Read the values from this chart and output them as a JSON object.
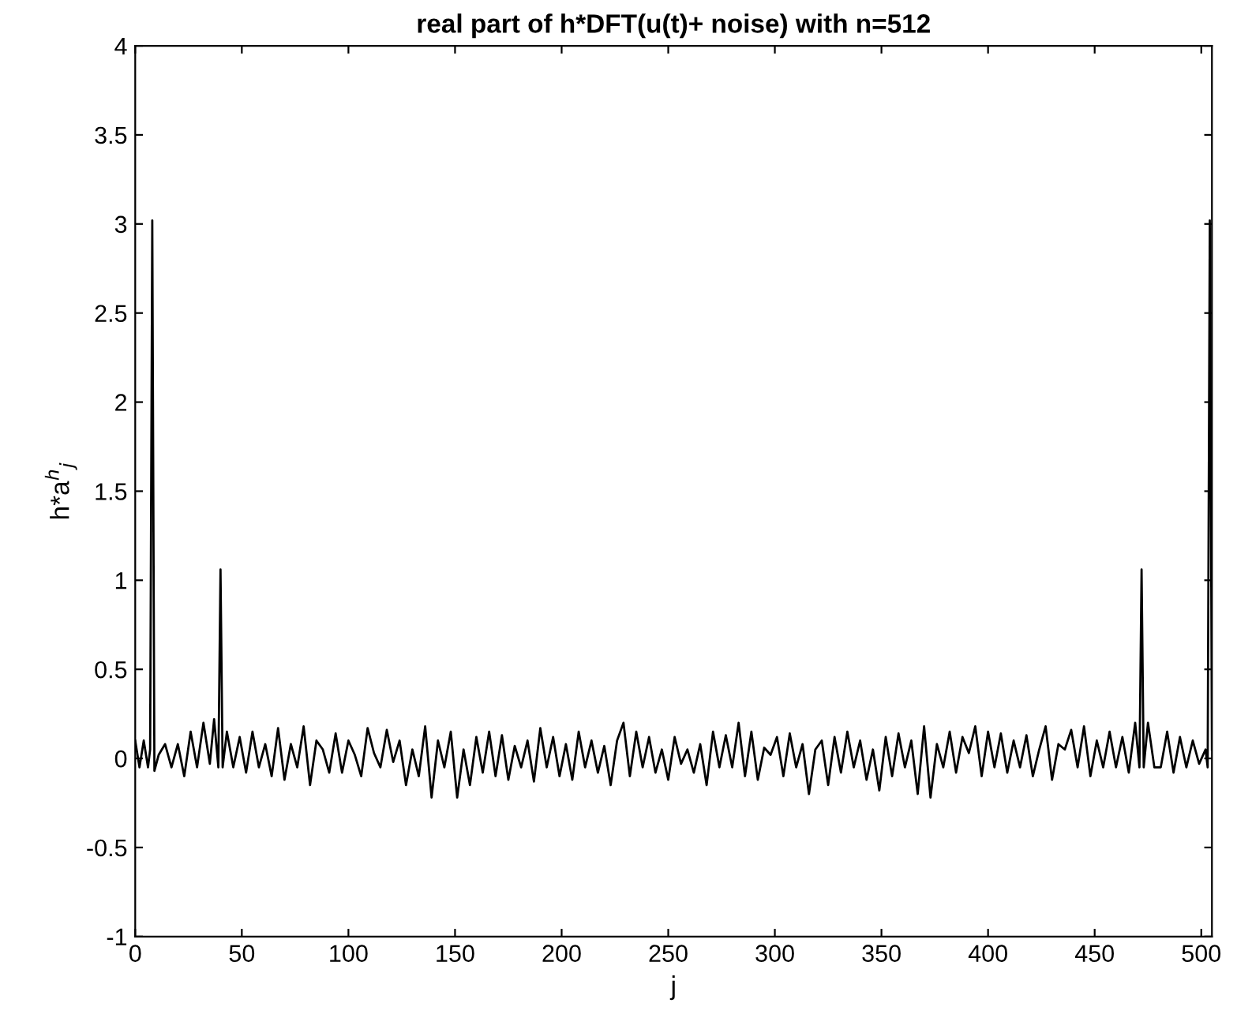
{
  "chart_data": {
    "type": "line",
    "title": "real part of h*DFT(u(t)+ noise) with n=512",
    "xlabel": "j",
    "ylabel": "h*a$^{h}$$_{j}$",
    "xlim": [
      0,
      505
    ],
    "ylim": [
      -1,
      4
    ],
    "xticks": [
      0,
      50,
      100,
      150,
      200,
      250,
      300,
      350,
      400,
      450,
      500
    ],
    "yticks": [
      -1,
      -0.5,
      0,
      0.5,
      1,
      1.5,
      2,
      2.5,
      3,
      3.5,
      4
    ],
    "grid": false,
    "legend": false,
    "marker": "none",
    "line_style": "solid",
    "series": [
      {
        "color": "#000000",
        "x": [
          0,
          2,
          4,
          6,
          7,
          8,
          9,
          11,
          14,
          17,
          20,
          23,
          26,
          29,
          32,
          35,
          37,
          39,
          40,
          41,
          43,
          46,
          49,
          52,
          55,
          58,
          61,
          64,
          67,
          70,
          73,
          76,
          79,
          82,
          85,
          88,
          91,
          94,
          97,
          100,
          103,
          106,
          109,
          112,
          115,
          118,
          121,
          124,
          127,
          130,
          133,
          136,
          139,
          142,
          145,
          148,
          151,
          154,
          157,
          160,
          163,
          166,
          169,
          172,
          175,
          178,
          181,
          184,
          187,
          190,
          193,
          196,
          199,
          202,
          205,
          208,
          211,
          214,
          217,
          220,
          223,
          226,
          229,
          232,
          235,
          238,
          241,
          244,
          247,
          250,
          253,
          256,
          259,
          262,
          265,
          268,
          271,
          274,
          277,
          280,
          283,
          286,
          289,
          292,
          295,
          298,
          301,
          304,
          307,
          310,
          313,
          316,
          319,
          322,
          325,
          328,
          331,
          334,
          337,
          340,
          343,
          346,
          349,
          352,
          355,
          358,
          361,
          364,
          367,
          370,
          373,
          376,
          379,
          382,
          385,
          388,
          391,
          394,
          397,
          400,
          403,
          406,
          409,
          412,
          415,
          418,
          421,
          424,
          427,
          430,
          433,
          436,
          439,
          442,
          445,
          448,
          451,
          454,
          457,
          460,
          463,
          466,
          469,
          471,
          472,
          473,
          475,
          478,
          481,
          484,
          487,
          490,
          493,
          496,
          499,
          502,
          503,
          504,
          505
        ],
        "values": [
          0.1,
          -0.05,
          0.1,
          -0.05,
          0.05,
          3.02,
          -0.07,
          0.02,
          0.08,
          -0.05,
          0.08,
          -0.1,
          0.15,
          -0.05,
          0.2,
          -0.03,
          0.22,
          -0.05,
          1.06,
          -0.05,
          0.15,
          -0.05,
          0.12,
          -0.08,
          0.15,
          -0.05,
          0.08,
          -0.1,
          0.17,
          -0.12,
          0.08,
          -0.05,
          0.18,
          -0.15,
          0.1,
          0.05,
          -0.08,
          0.14,
          -0.08,
          0.1,
          0.02,
          -0.1,
          0.17,
          0.03,
          -0.05,
          0.16,
          -0.02,
          0.1,
          -0.15,
          0.05,
          -0.1,
          0.18,
          -0.22,
          0.1,
          -0.05,
          0.15,
          -0.22,
          0.05,
          -0.15,
          0.12,
          -0.08,
          0.15,
          -0.1,
          0.13,
          -0.12,
          0.07,
          -0.05,
          0.1,
          -0.13,
          0.17,
          -0.05,
          0.12,
          -0.1,
          0.08,
          -0.12,
          0.15,
          -0.05,
          0.1,
          -0.08,
          0.07,
          -0.15,
          0.1,
          0.2,
          -0.1,
          0.15,
          -0.05,
          0.12,
          -0.08,
          0.05,
          -0.12,
          0.12,
          -0.03,
          0.05,
          -0.08,
          0.08,
          -0.15,
          0.15,
          -0.05,
          0.13,
          -0.05,
          0.2,
          -0.1,
          0.15,
          -0.12,
          0.06,
          0.02,
          0.12,
          -0.1,
          0.14,
          -0.05,
          0.08,
          -0.2,
          0.05,
          0.1,
          -0.15,
          0.12,
          -0.08,
          0.15,
          -0.05,
          0.1,
          -0.12,
          0.05,
          -0.18,
          0.12,
          -0.1,
          0.14,
          -0.05,
          0.1,
          -0.2,
          0.18,
          -0.22,
          0.08,
          -0.05,
          0.15,
          -0.08,
          0.12,
          0.03,
          0.18,
          -0.1,
          0.15,
          -0.05,
          0.14,
          -0.08,
          0.1,
          -0.05,
          0.13,
          -0.1,
          0.05,
          0.18,
          -0.12,
          0.08,
          0.05,
          0.16,
          -0.05,
          0.18,
          -0.1,
          0.1,
          -0.05,
          0.15,
          -0.05,
          0.12,
          -0.08,
          0.2,
          -0.05,
          1.06,
          -0.05,
          0.2,
          -0.05,
          -0.05,
          0.15,
          -0.08,
          0.12,
          -0.05,
          0.1,
          -0.03,
          0.05,
          -0.05,
          3.02,
          0.05
        ]
      }
    ]
  }
}
